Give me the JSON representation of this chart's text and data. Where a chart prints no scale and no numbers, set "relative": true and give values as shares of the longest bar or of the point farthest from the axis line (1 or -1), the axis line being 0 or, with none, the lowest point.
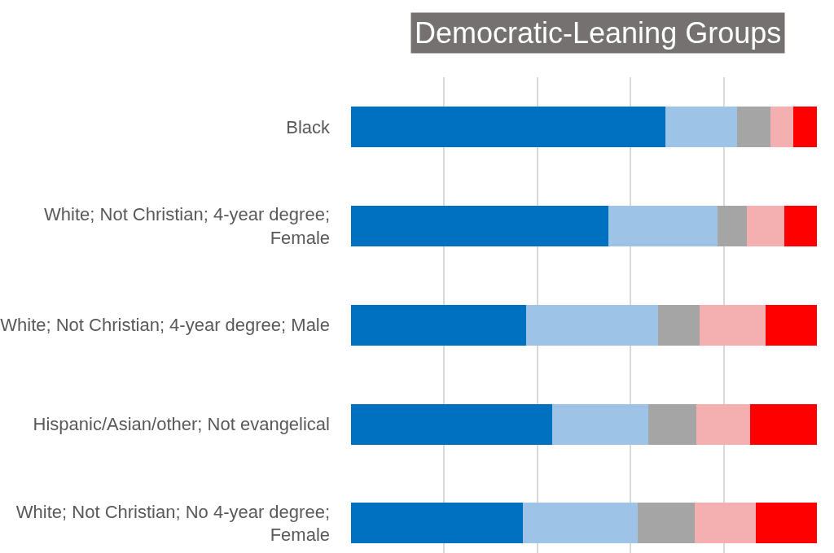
{
  "chart_data": {
    "type": "bar",
    "title": "Democratic-Leaning Groups",
    "orientation": "horizontal",
    "stacked": true,
    "relative": true,
    "grid": "x",
    "categories": [
      "Black",
      "White; Not Christian; 4-year degree; Female",
      "White; Not Christian; 4-year degree; Male",
      "Hispanic/Asian/other; Not evangelical",
      "White; Not Christian; No 4-year degree; Female"
    ],
    "series": [
      {
        "color": "#0070c0",
        "values": [
          0.674,
          0.552,
          0.376,
          0.431,
          0.368
        ]
      },
      {
        "color": "#9dc3e6",
        "values": [
          0.154,
          0.235,
          0.283,
          0.207,
          0.247
        ]
      },
      {
        "color": "#a5a5a5",
        "values": [
          0.072,
          0.063,
          0.089,
          0.104,
          0.123
        ]
      },
      {
        "color": "#f4b0b0",
        "values": [
          0.049,
          0.08,
          0.142,
          0.114,
          0.131
        ]
      },
      {
        "color": "#ff0000",
        "values": [
          0.051,
          0.07,
          0.11,
          0.144,
          0.131
        ]
      }
    ]
  }
}
